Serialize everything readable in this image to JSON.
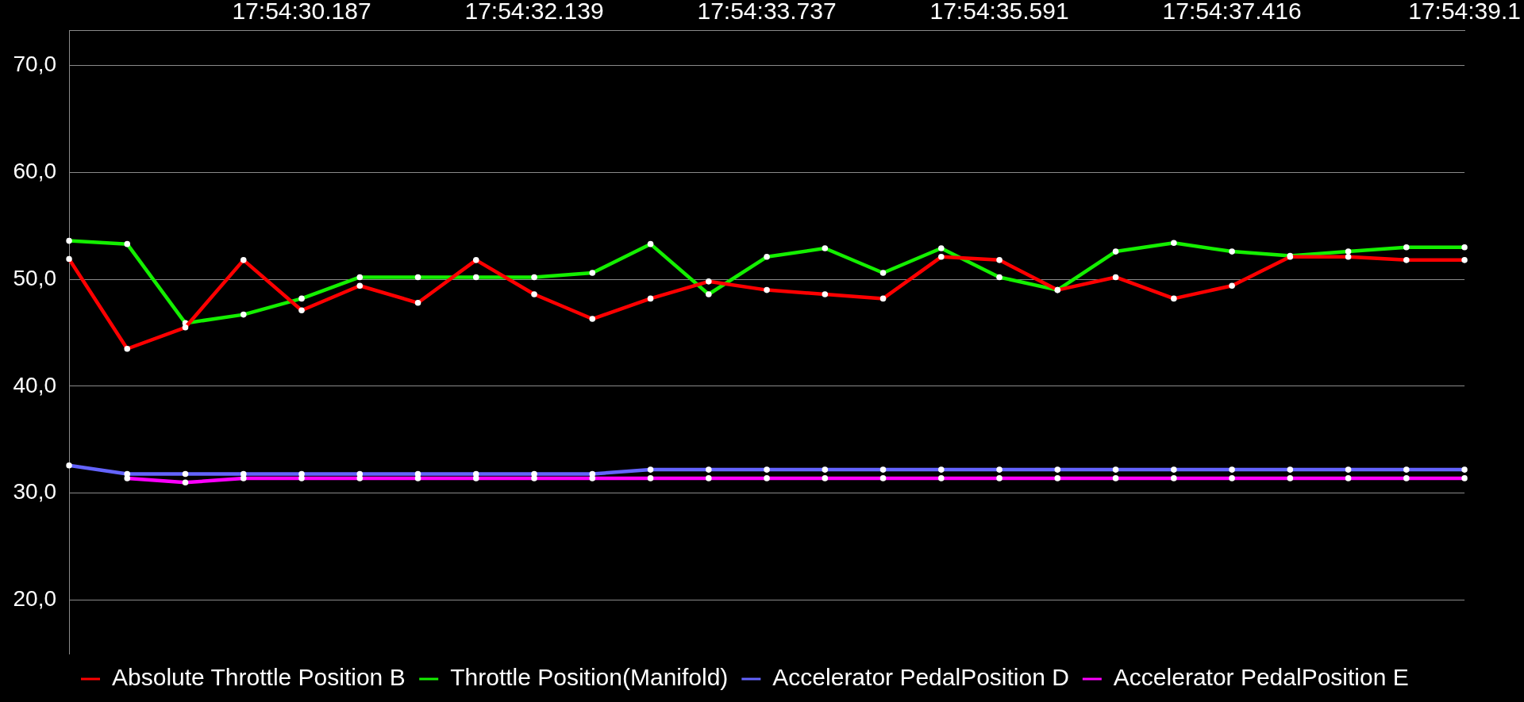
{
  "chart_data": {
    "type": "line",
    "categories": [
      null,
      null,
      null,
      null,
      "17:54:30.187",
      null,
      null,
      null,
      "17:54:32.139",
      null,
      null,
      null,
      "17:54:33.737",
      null,
      null,
      null,
      "17:54:35.591",
      null,
      null,
      null,
      "17:54:37.416",
      null,
      null,
      null,
      "17:54:39.1"
    ],
    "ylim": [
      15,
      73.3
    ],
    "yticks": [
      {
        "value": 20,
        "label": "20,0"
      },
      {
        "value": 30,
        "label": "30,0"
      },
      {
        "value": 40,
        "label": "40,0"
      },
      {
        "value": 50,
        "label": "50,0"
      },
      {
        "value": 60,
        "label": "60,0"
      },
      {
        "value": 70,
        "label": "70,0"
      }
    ],
    "grid": "y",
    "legend": "bottom left",
    "marker": "circle",
    "line_style": "solid",
    "series": [
      {
        "name": "Absolute Throttle Position B",
        "color": "#ff0000",
        "values": [
          51.9,
          43.5,
          45.5,
          51.8,
          47.1,
          49.4,
          47.8,
          51.8,
          48.6,
          46.3,
          48.2,
          49.8,
          49.0,
          48.6,
          48.2,
          52.1,
          51.8,
          49.0,
          50.2,
          48.2,
          49.4,
          52.1,
          52.1,
          51.8,
          51.8
        ]
      },
      {
        "name": "Throttle Position(Manifold)",
        "color": "#14f000",
        "values": [
          53.6,
          53.3,
          45.9,
          46.7,
          48.2,
          50.2,
          50.2,
          50.2,
          50.2,
          50.6,
          53.3,
          48.6,
          52.1,
          52.9,
          50.6,
          52.9,
          50.2,
          49.0,
          52.6,
          53.4,
          52.6,
          52.2,
          52.6,
          53.0,
          53.0
        ]
      },
      {
        "name": "Accelerator PedalPosition D",
        "color": "#6464ff",
        "values": [
          32.6,
          31.8,
          31.8,
          31.8,
          31.8,
          31.8,
          31.8,
          31.8,
          31.8,
          31.8,
          32.2,
          32.2,
          32.2,
          32.2,
          32.2,
          32.2,
          32.2,
          32.2,
          32.2,
          32.2,
          32.2,
          32.2,
          32.2,
          32.2,
          32.2
        ]
      },
      {
        "name": "Accelerator PedalPosition E",
        "color": "#ff00ff",
        "values": [
          null,
          31.4,
          31.0,
          31.4,
          31.4,
          31.4,
          31.4,
          31.4,
          31.4,
          31.4,
          31.4,
          31.4,
          31.4,
          31.4,
          31.4,
          31.4,
          31.4,
          31.4,
          31.4,
          31.4,
          31.4,
          31.4,
          31.4,
          31.4,
          31.4
        ]
      }
    ]
  }
}
